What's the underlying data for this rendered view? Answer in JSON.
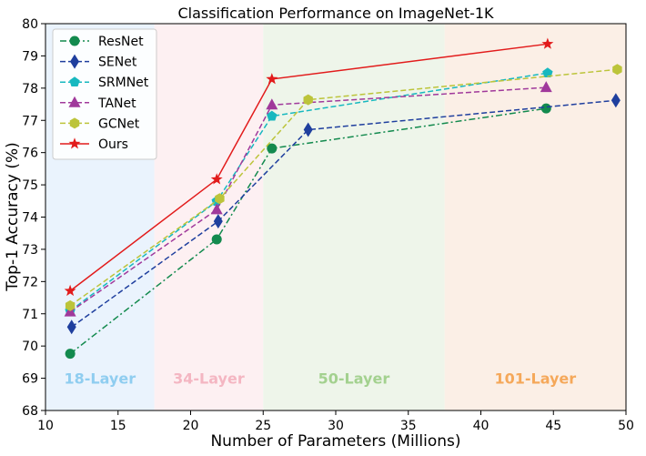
{
  "chart_data": {
    "type": "line",
    "title": "Classification Performance on ImageNet-1K",
    "xlabel": "Number of Parameters (Millions)",
    "ylabel": "Top-1 Accuracy (%)",
    "xlim": [
      10,
      50
    ],
    "ylim": [
      68,
      80
    ],
    "xticks": [
      10,
      15,
      20,
      25,
      30,
      35,
      40,
      45,
      50
    ],
    "yticks": [
      68,
      69,
      70,
      71,
      72,
      73,
      74,
      75,
      76,
      77,
      78,
      79,
      80
    ],
    "grid": false,
    "legend_position": "top-left",
    "regions": [
      {
        "label": "18-Layer",
        "x": [
          10,
          17.5
        ],
        "fill": "#eaf3fd",
        "text_color": "#8fcdf0"
      },
      {
        "label": "34-Layer",
        "x": [
          17.5,
          25
        ],
        "fill": "#fdf0f2",
        "text_color": "#f4b6c2"
      },
      {
        "label": "50-Layer",
        "x": [
          25,
          37.5
        ],
        "fill": "#eef5ea",
        "text_color": "#a3d18f"
      },
      {
        "label": "101-Layer",
        "x": [
          37.5,
          50
        ],
        "fill": "#fbefe6",
        "text_color": "#f5a85a"
      }
    ],
    "series": [
      {
        "name": "ResNet",
        "color": "#138a4e",
        "dash": "dashdot",
        "marker": "circle",
        "x": [
          11.7,
          21.8,
          25.6,
          44.5
        ],
        "y": [
          69.76,
          73.31,
          76.13,
          77.37
        ]
      },
      {
        "name": "SENet",
        "color": "#1f3f9e",
        "dash": "dashed",
        "marker": "diamond",
        "x": [
          11.8,
          21.9,
          28.1,
          49.3
        ],
        "y": [
          70.59,
          73.87,
          76.71,
          77.62
        ]
      },
      {
        "name": "SRMNet",
        "color": "#17b8bf",
        "dash": "dashed",
        "marker": "pentagon",
        "x": [
          11.7,
          21.8,
          25.6,
          44.6
        ],
        "y": [
          71.09,
          74.49,
          77.13,
          78.47
        ]
      },
      {
        "name": "TANet",
        "color": "#a0399b",
        "dash": "dashed",
        "marker": "triangle",
        "x": [
          11.7,
          21.8,
          25.6,
          44.5
        ],
        "y": [
          71.06,
          74.23,
          77.48,
          78.02
        ]
      },
      {
        "name": "GCNet",
        "color": "#bcc43a",
        "dash": "dashed",
        "marker": "hexagon",
        "x": [
          11.7,
          22.0,
          28.1,
          49.4
        ],
        "y": [
          71.25,
          74.57,
          77.64,
          78.58
        ]
      },
      {
        "name": "Ours",
        "color": "#e21b1b",
        "dash": "solid",
        "marker": "star",
        "x": [
          11.7,
          21.8,
          25.6,
          44.6
        ],
        "y": [
          71.71,
          75.17,
          78.28,
          79.37
        ]
      }
    ]
  }
}
